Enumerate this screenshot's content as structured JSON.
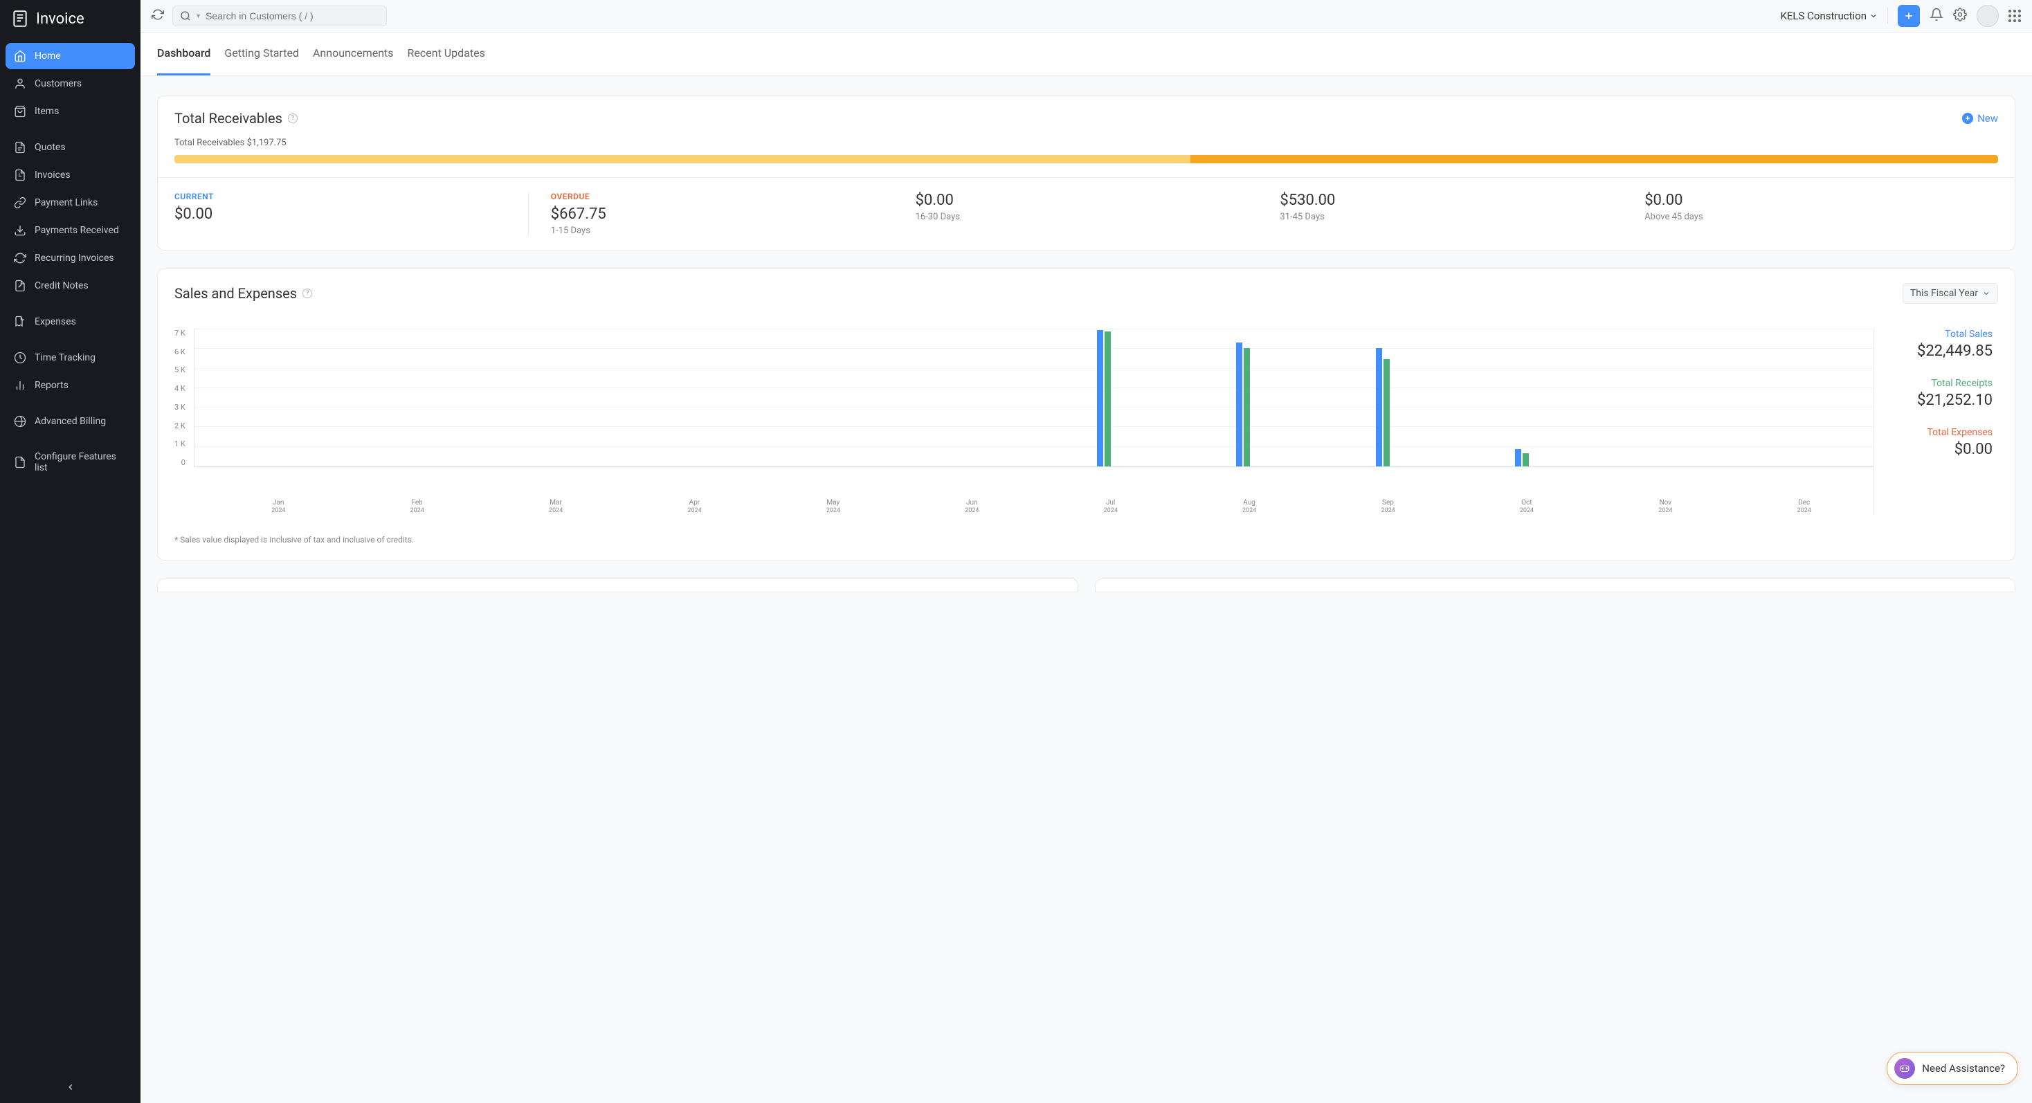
{
  "app": {
    "name": "Invoice"
  },
  "sidebar": {
    "items": [
      {
        "label": "Home",
        "icon": "home",
        "active": true
      },
      {
        "label": "Customers",
        "icon": "user"
      },
      {
        "label": "Items",
        "icon": "bag"
      },
      {
        "spacer": true
      },
      {
        "label": "Quotes",
        "icon": "doc"
      },
      {
        "label": "Invoices",
        "icon": "invoice"
      },
      {
        "label": "Payment Links",
        "icon": "link"
      },
      {
        "label": "Payments Received",
        "icon": "download"
      },
      {
        "label": "Recurring Invoices",
        "icon": "recur"
      },
      {
        "label": "Credit Notes",
        "icon": "credit"
      },
      {
        "spacer": true
      },
      {
        "label": "Expenses",
        "icon": "receipt"
      },
      {
        "spacer": true
      },
      {
        "label": "Time Tracking",
        "icon": "clock"
      },
      {
        "label": "Reports",
        "icon": "bars"
      },
      {
        "spacer": true
      },
      {
        "label": "Advanced Billing",
        "icon": "billing"
      },
      {
        "spacer": true
      },
      {
        "label": "Configure Features list",
        "icon": "page"
      }
    ]
  },
  "topbar": {
    "search_placeholder": "Search in Customers ( / )",
    "org_name": "KELS Construction"
  },
  "tabs": [
    {
      "label": "Dashboard",
      "active": true
    },
    {
      "label": "Getting Started"
    },
    {
      "label": "Announcements"
    },
    {
      "label": "Recent Updates"
    }
  ],
  "receivables": {
    "title": "Total Receivables",
    "new_label": "New",
    "total_text": "Total Receivables $1,197.75",
    "progress": {
      "seg1_pct": 55.7,
      "seg2_pct": 44.3,
      "seg1_color": "#fbd172",
      "seg2_color": "#f5a623"
    },
    "current": {
      "label": "CURRENT",
      "amount": "$0.00"
    },
    "overdue_label": "OVERDUE",
    "buckets": [
      {
        "amount": "$667.75",
        "range": "1-15 Days"
      },
      {
        "amount": "$0.00",
        "range": "16-30 Days"
      },
      {
        "amount": "$530.00",
        "range": "31-45 Days"
      },
      {
        "amount": "$0.00",
        "range": "Above 45 days"
      }
    ]
  },
  "sales_expenses": {
    "title": "Sales and Expenses",
    "period": "This Fiscal Year",
    "y_ticks": [
      "7 K",
      "6 K",
      "5 K",
      "4 K",
      "3 K",
      "2 K",
      "1 K",
      "0"
    ],
    "y_max": 7500,
    "months": [
      "Jan",
      "Feb",
      "Mar",
      "Apr",
      "May",
      "Jun",
      "Jul",
      "Aug",
      "Sep",
      "Oct",
      "Nov",
      "Dec"
    ],
    "year": "2024",
    "series": {
      "sales": [
        0,
        0,
        0,
        0,
        0,
        0,
        7400,
        6700,
        6400,
        950,
        0,
        0
      ],
      "receipts": [
        0,
        0,
        0,
        0,
        0,
        0,
        7300,
        6400,
        5800,
        700,
        0,
        0
      ]
    },
    "colors": {
      "sales": "#408dfb",
      "receipts": "#4caf78",
      "grid": "#f0f2f5"
    },
    "stats": {
      "sales": {
        "label": "Total Sales",
        "value": "$22,449.85"
      },
      "receipts": {
        "label": "Total Receipts",
        "value": "$21,252.10"
      },
      "expenses": {
        "label": "Total Expenses",
        "value": "$0.00"
      }
    },
    "footnote": "* Sales value displayed is inclusive of tax and inclusive of credits."
  },
  "assist": {
    "label": "Need Assistance?"
  }
}
